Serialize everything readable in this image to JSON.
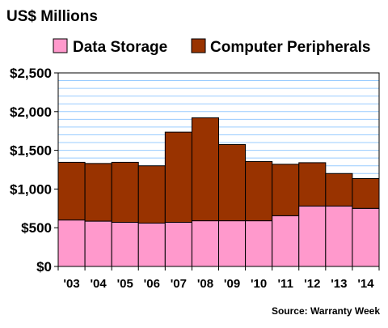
{
  "chart_data": {
    "type": "bar",
    "stacked": true,
    "title": "US$ Millions",
    "source": "Source: Warranty Week",
    "categories": [
      "'03",
      "'04",
      "'05",
      "'06",
      "'07",
      "'08",
      "'09",
      "'10",
      "'11",
      "'12",
      "'13",
      "'14"
    ],
    "series": [
      {
        "name": "Data Storage",
        "color": "#ff99cc",
        "values": [
          600,
          585,
          570,
          560,
          570,
          590,
          590,
          590,
          655,
          780,
          780,
          750
        ]
      },
      {
        "name": "Computer Peripherals",
        "color": "#993300",
        "values": [
          745,
          745,
          775,
          740,
          1165,
          1330,
          985,
          765,
          665,
          560,
          420,
          385
        ]
      }
    ],
    "ylim": [
      0,
      2500
    ],
    "yticks": [
      0,
      500,
      1000,
      1500,
      2000,
      2500
    ],
    "ytick_labels": [
      "$0",
      "$500",
      "$1,000",
      "$1,500",
      "$2,000",
      "$2,500"
    ],
    "grid": true,
    "grid_color": "#99ccff",
    "legend_position": "top",
    "xlabel": "",
    "ylabel": ""
  }
}
